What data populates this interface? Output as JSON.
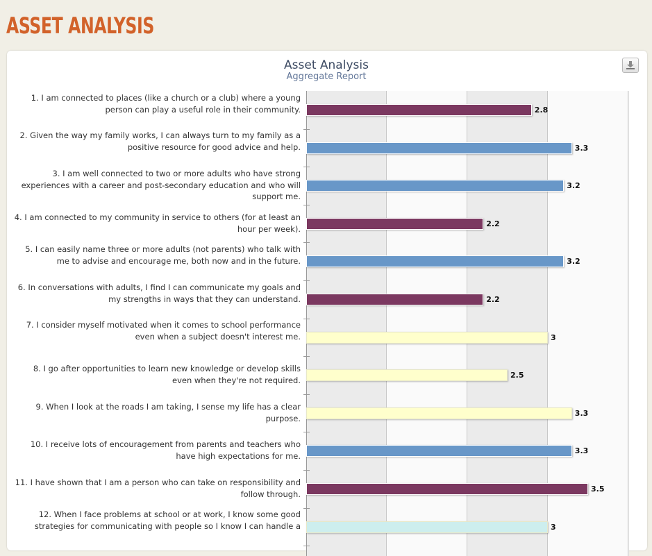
{
  "page": {
    "title": "ASSET ANALYSIS"
  },
  "toolbar": {
    "export_icon": "download-icon"
  },
  "colors": {
    "title": "#d2622a",
    "purple": "#7b3860",
    "blue": "#6897c8",
    "yellow": "#ffffcc",
    "cyan": "#cdeeee"
  },
  "chart_data": {
    "type": "bar",
    "orientation": "horizontal",
    "title": "Asset Analysis",
    "subtitle": "Aggregate Report",
    "xlim": [
      0,
      4
    ],
    "grid": true,
    "categories": [
      "1. I am connected to places (like a church or a club) where a young person can play a useful role in their community.",
      "2. Given the way my family works, I can always turn to my family as a positive resource for good advice and help.",
      "3. I am well connected to two or more adults who have strong experiences with a career and post-secondary education and who will support me.",
      "4. I am connected to my community in service to others (for at least an hour per week).",
      "5. I can easily name three or more adults (not parents) who talk with me to advise and encourage me, both now and in the future.",
      "6. In conversations with adults, I find I can communicate my goals and my strengths in ways that they can understand.",
      "7. I consider myself motivated when it comes to school performance even when a subject doesn't interest me.",
      "8. I go after opportunities to learn new knowledge or develop skills even when they're not required.",
      "9. When I look at the roads I am taking, I sense my life has a clear purpose.",
      "10. I receive lots of encouragement from parents and teachers who have high expectations for me.",
      "11. I have shown that I am a person who can take on responsibility and follow through.",
      "12. When I face problems at school or at work, I know some good strategies for communicating with people so I know I can handle a"
    ],
    "values": [
      2.8,
      3.3,
      3.2,
      2.2,
      3.2,
      2.2,
      3,
      2.5,
      3.3,
      3.3,
      3.5,
      3
    ],
    "value_labels": [
      "2.8",
      "3.3",
      "3.2",
      "2.2",
      "3.2",
      "2.2",
      "3",
      "2.5",
      "3.3",
      "3.3",
      "3.5",
      "3"
    ],
    "bar_colors": [
      "#7b3860",
      "#6897c8",
      "#6897c8",
      "#7b3860",
      "#6897c8",
      "#7b3860",
      "#ffffcc",
      "#ffffcc",
      "#ffffcc",
      "#6897c8",
      "#7b3860",
      "#cdeeee"
    ]
  }
}
